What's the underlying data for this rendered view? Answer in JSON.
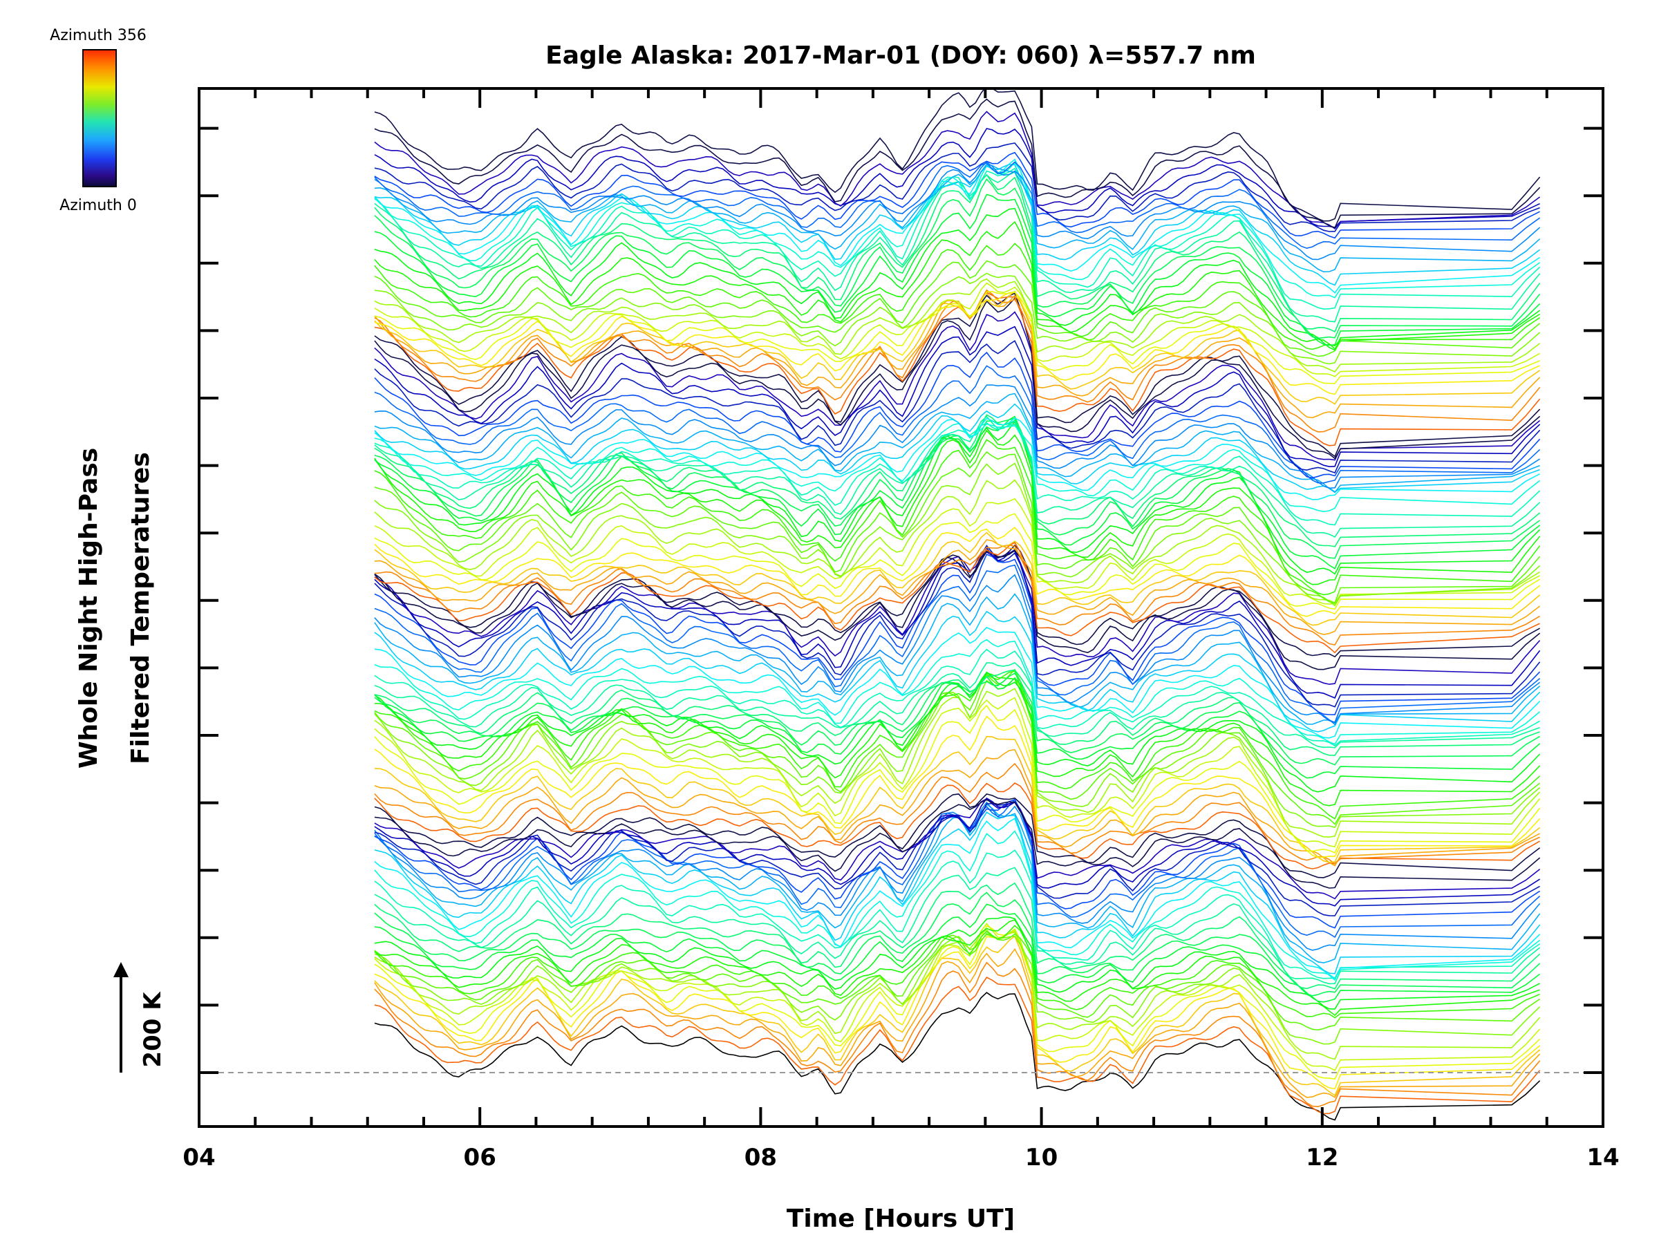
{
  "chart_data": {
    "type": "line",
    "title": "Eagle Alaska: 2017-Mar-01 (DOY: 060) λ=557.7 nm",
    "xlabel": "Time [Hours UT]",
    "ylabel_line1": "Whole Night High-Pass",
    "ylabel_line2": "Filtered Temperatures",
    "xlim": [
      4,
      14
    ],
    "x_ticks": [
      4,
      6,
      8,
      10,
      12,
      14
    ],
    "x_tick_labels": [
      "04",
      "06",
      "08",
      "10",
      "12",
      "14"
    ],
    "scale_bar_label": "200 K",
    "colorbar": {
      "top_label": "Azimuth  356",
      "bottom_label": "Azimuth  0",
      "colors": [
        "#ff2a00",
        "#ff8c00",
        "#e8e800",
        "#7ded2a",
        "#22e3b4",
        "#1ea5ff",
        "#1e3cf0",
        "#2b0a88",
        "#0a0a3a"
      ]
    },
    "series_description_values": {
      "count": 121,
      "time_start": 5.25,
      "time_end": 13.55,
      "data_gap": [
        12.15,
        13.35
      ],
      "step_at": 9.97,
      "stack_offset_K": 200
    },
    "grid": false,
    "baseline": "dashed"
  }
}
